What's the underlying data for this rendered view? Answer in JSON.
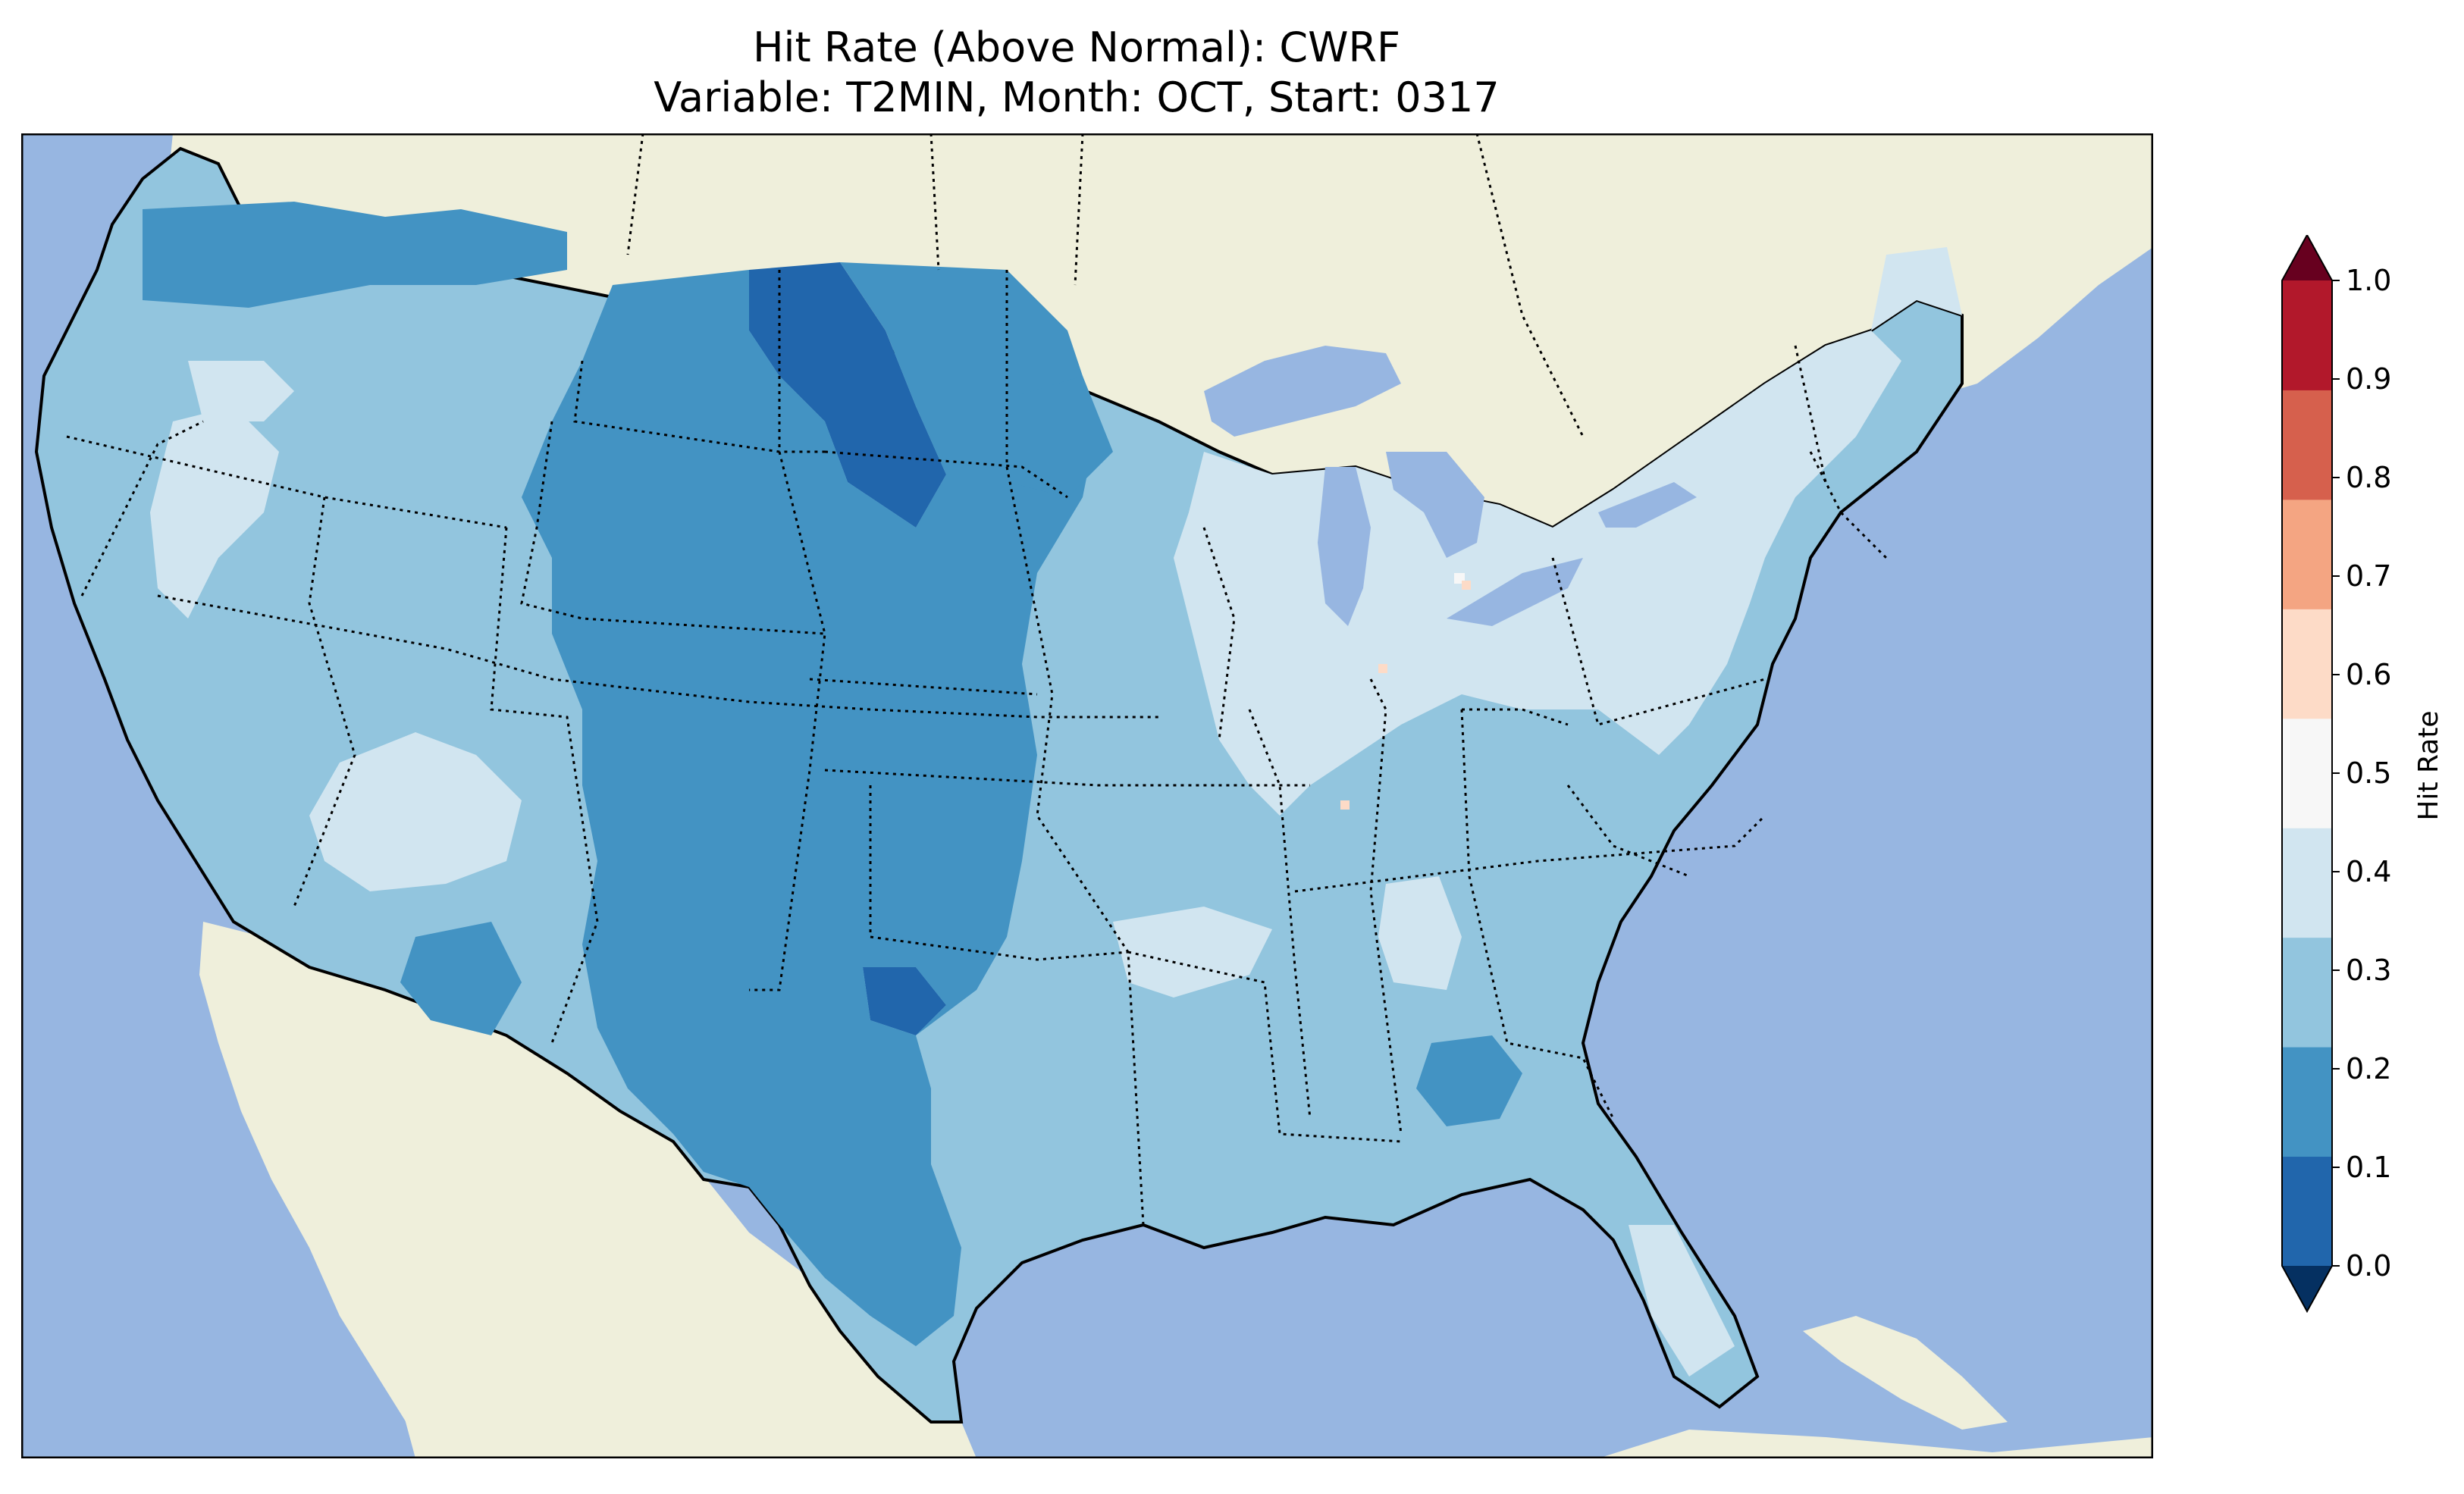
{
  "title": {
    "line1": "Hit Rate (Above Normal): CWRF",
    "line2": "Variable: T2MIN, Month: OCT, Start: 0317"
  },
  "colorbar": {
    "label": "Hit Rate",
    "ticks": [
      "0.0",
      "0.1",
      "0.2",
      "0.3",
      "0.4",
      "0.5",
      "0.6",
      "0.7",
      "0.8",
      "0.9",
      "1.0"
    ],
    "colors": [
      "#053061",
      "#2166ac",
      "#4393c3",
      "#92c5de",
      "#d1e5f0",
      "#f7f7f7",
      "#fddbc7",
      "#f4a582",
      "#d6604d",
      "#b2182b",
      "#67001f"
    ],
    "extend": "both"
  },
  "map": {
    "ocean_color": "#97b6e1",
    "land_color": "#efefdb",
    "region": "CONUS"
  },
  "colors": {
    "c_01_02": "#2166ac",
    "c_02_03": "#4393c3",
    "c_03_04": "#92c5de",
    "c_04_05": "#d1e5f0",
    "c_05_06": "#f7f7f7",
    "c_06_07": "#fddbc7"
  }
}
